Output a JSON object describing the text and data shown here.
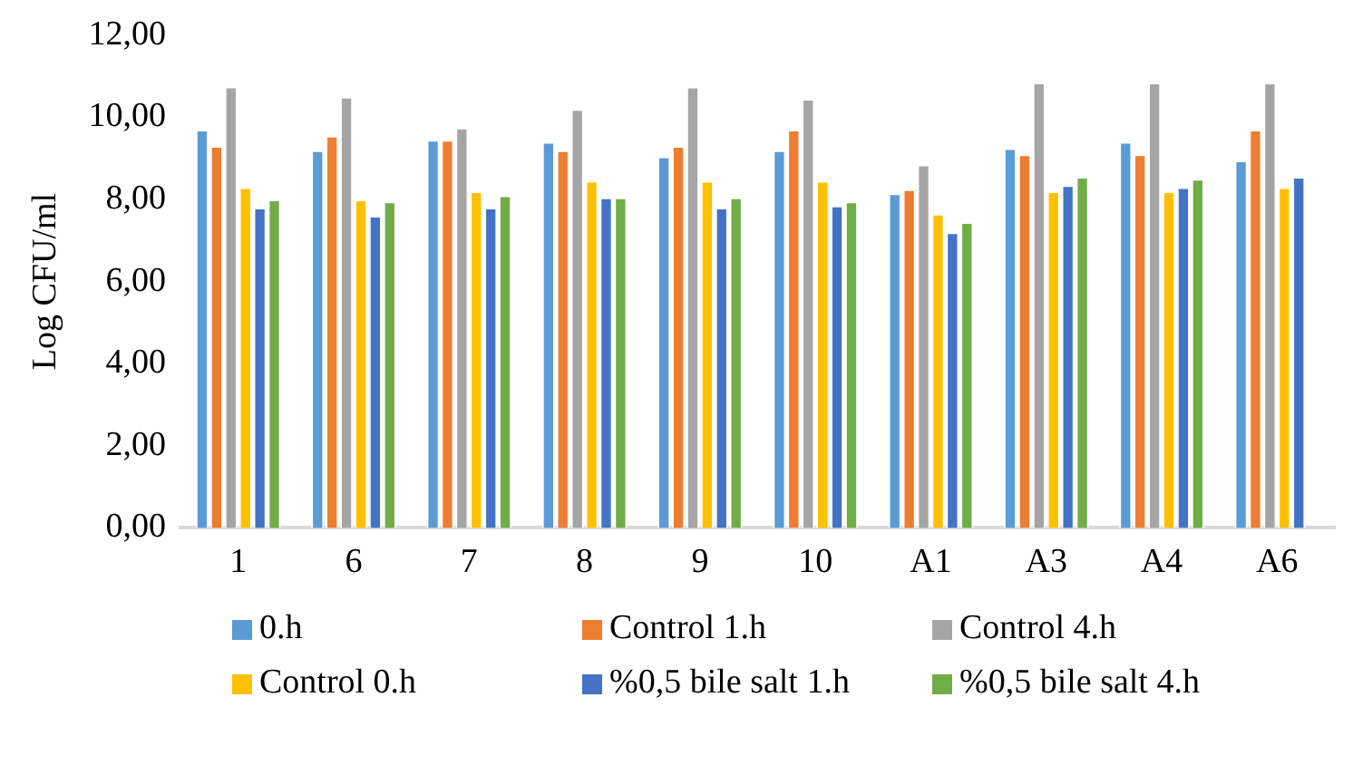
{
  "chart_data": {
    "type": "bar",
    "ylabel": "Log CFU/ml",
    "categories": [
      "1",
      "6",
      "7",
      "8",
      "9",
      "10",
      "A1",
      "A3",
      "A4",
      "A6"
    ],
    "series": [
      {
        "name": "0.h",
        "color": "#5b9bd5",
        "values": [
          9.7,
          9.2,
          9.45,
          9.4,
          9.05,
          9.2,
          8.15,
          9.25,
          9.4,
          8.95
        ]
      },
      {
        "name": "Control 1.h",
        "color": "#ed7d31",
        "values": [
          9.3,
          9.55,
          9.45,
          9.2,
          9.3,
          9.7,
          8.25,
          9.1,
          9.1,
          9.7
        ]
      },
      {
        "name": "Control 4.h",
        "color": "#a5a5a5",
        "values": [
          10.75,
          10.5,
          9.75,
          10.2,
          10.75,
          10.45,
          8.85,
          10.85,
          10.85,
          10.85
        ]
      },
      {
        "name": "Control 0.h",
        "color": "#ffc000",
        "values": [
          8.3,
          8.0,
          8.2,
          8.45,
          8.45,
          8.45,
          7.65,
          8.2,
          8.2,
          8.3
        ]
      },
      {
        "name": "%0,5 bile salt 1.h",
        "color": "#4472c4",
        "values": [
          7.8,
          7.6,
          7.8,
          8.05,
          7.8,
          7.85,
          7.2,
          8.35,
          8.3,
          8.55
        ]
      },
      {
        "name": "%0,5 bile salt 4.h",
        "color": "#70ad47",
        "values": [
          8.0,
          7.95,
          8.1,
          8.05,
          8.05,
          7.95,
          7.45,
          8.55,
          8.5,
          null
        ]
      }
    ],
    "ylim": [
      0,
      12
    ],
    "yticks": [
      {
        "value": 0,
        "label": "0,00"
      },
      {
        "value": 2,
        "label": "2,00"
      },
      {
        "value": 4,
        "label": "4,00"
      },
      {
        "value": 6,
        "label": "6,00"
      },
      {
        "value": 8,
        "label": "8,00"
      },
      {
        "value": 10,
        "label": "10,00"
      },
      {
        "value": 12,
        "label": "12,00"
      }
    ],
    "grid": false,
    "legend": "bottom"
  }
}
